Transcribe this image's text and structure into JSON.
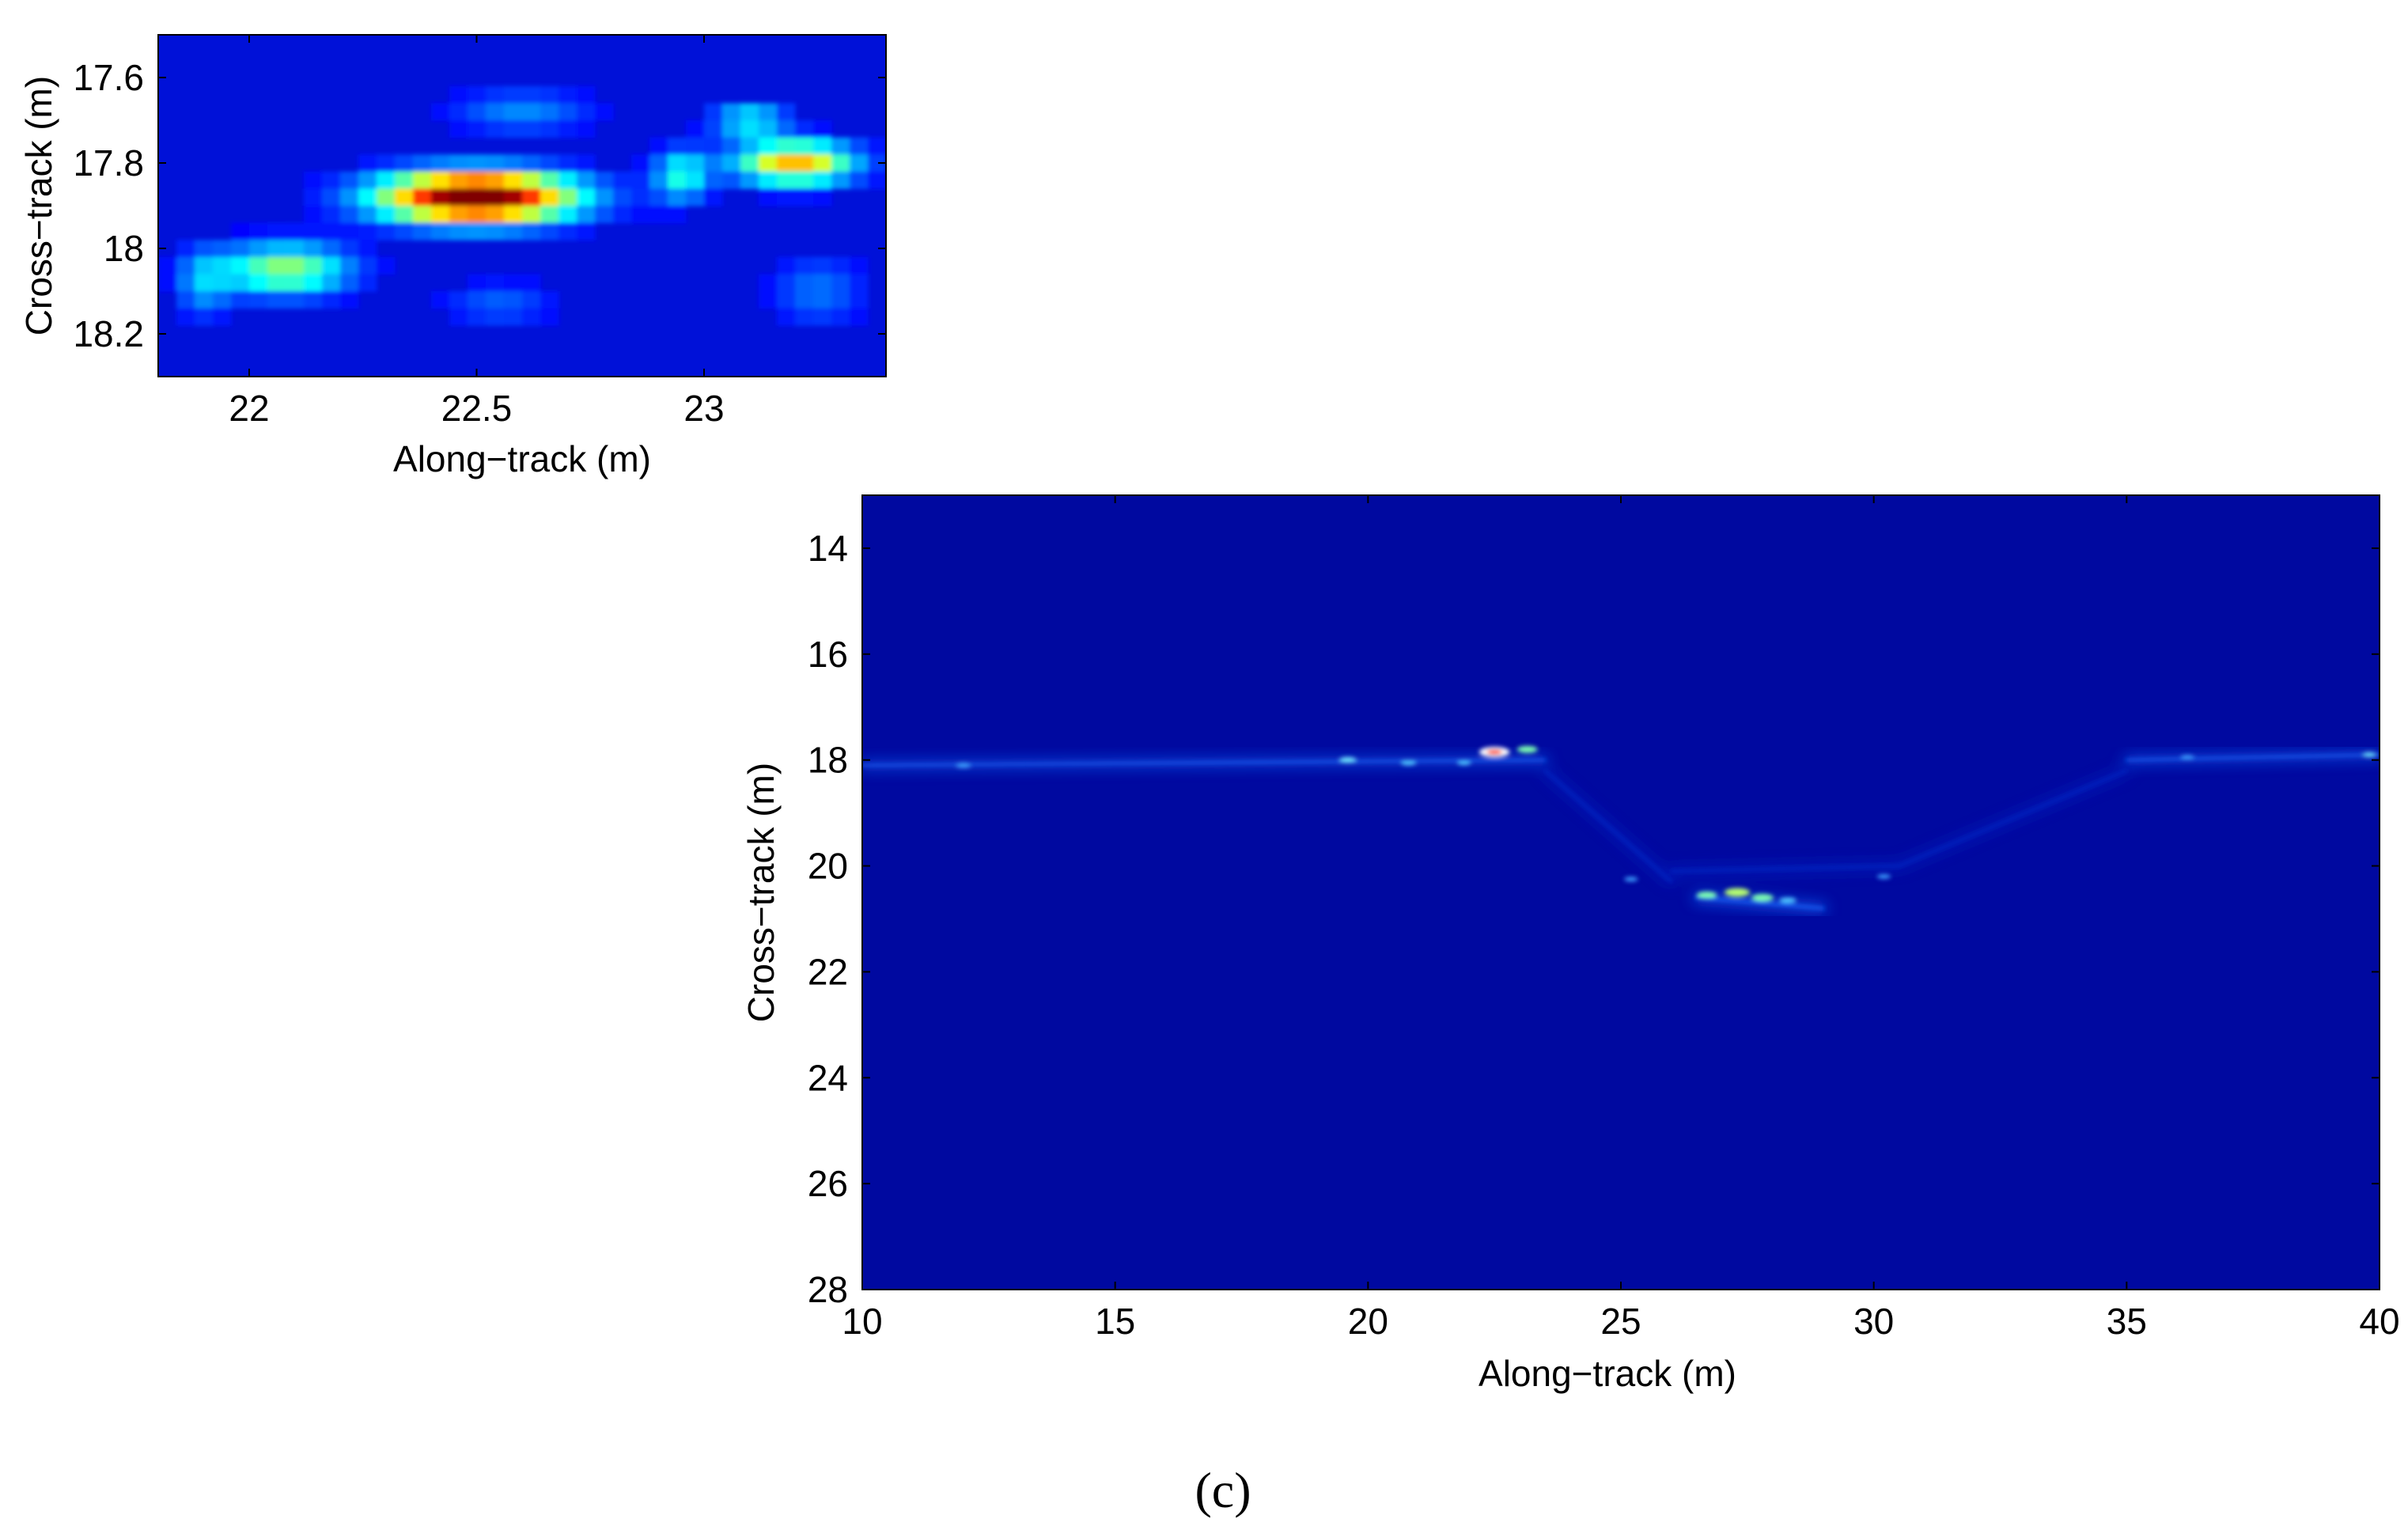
{
  "caption": "(c)",
  "chart_data": [
    {
      "type": "heatmap",
      "title": "",
      "xlabel": "Along−track (m)",
      "ylabel": "Cross−track (m)",
      "xlim": [
        21.8,
        23.4
      ],
      "ylim": [
        17.5,
        18.3
      ],
      "y_reversed": true,
      "xticks": [
        22,
        22.5,
        23
      ],
      "xtick_labels": [
        "22",
        "22.5",
        "23"
      ],
      "yticks": [
        17.6,
        17.8,
        18,
        18.2
      ],
      "ytick_labels": [
        "17.6",
        "17.8",
        "18",
        "18.2"
      ],
      "colormap": "jet",
      "background_color": "#0011d8",
      "peaks": [
        {
          "x": 22.5,
          "y": 17.88,
          "intensity": 1.0,
          "sx": 0.21,
          "sy": 0.06
        },
        {
          "x": 22.08,
          "y": 18.05,
          "intensity": 0.42,
          "sx": 0.14,
          "sy": 0.06
        },
        {
          "x": 23.2,
          "y": 17.8,
          "intensity": 0.6,
          "sx": 0.13,
          "sy": 0.05
        },
        {
          "x": 22.95,
          "y": 17.83,
          "intensity": 0.3,
          "sx": 0.06,
          "sy": 0.06
        },
        {
          "x": 23.1,
          "y": 17.7,
          "intensity": 0.28,
          "sx": 0.08,
          "sy": 0.04
        },
        {
          "x": 22.6,
          "y": 17.68,
          "intensity": 0.16,
          "sx": 0.15,
          "sy": 0.05
        },
        {
          "x": 21.9,
          "y": 18.08,
          "intensity": 0.18,
          "sx": 0.06,
          "sy": 0.08
        },
        {
          "x": 22.55,
          "y": 18.13,
          "intensity": 0.12,
          "sx": 0.12,
          "sy": 0.05
        },
        {
          "x": 23.25,
          "y": 18.1,
          "intensity": 0.14,
          "sx": 0.1,
          "sy": 0.08
        }
      ]
    },
    {
      "type": "heatmap",
      "title": "",
      "xlabel": "Along−track (m)",
      "ylabel": "Cross−track (m)",
      "xlim": [
        10,
        40
      ],
      "ylim": [
        13,
        28
      ],
      "y_reversed": true,
      "xticks": [
        10,
        15,
        20,
        25,
        30,
        35,
        40
      ],
      "xtick_labels": [
        "10",
        "15",
        "20",
        "25",
        "30",
        "35",
        "40"
      ],
      "yticks": [
        14,
        16,
        18,
        20,
        22,
        24,
        26,
        28
      ],
      "ytick_labels": [
        "14",
        "16",
        "18",
        "20",
        "22",
        "24",
        "26",
        "28"
      ],
      "colormap": "jet",
      "background_color": "#0009a0",
      "features": [
        {
          "kind": "segment",
          "x0": 10,
          "y0": 18.1,
          "x1": 23.5,
          "y1": 18.0,
          "color": "#1a6cff",
          "width": 0.12
        },
        {
          "kind": "segment",
          "x0": 35,
          "y0": 18.0,
          "x1": 40,
          "y1": 17.9,
          "color": "#1a6cff",
          "width": 0.12
        },
        {
          "kind": "segment",
          "x0": 23.5,
          "y0": 18.2,
          "x1": 26,
          "y1": 20.3,
          "color": "#0b2fd0",
          "width": 0.1
        },
        {
          "kind": "segment",
          "x0": 26,
          "y0": 20.1,
          "x1": 30.5,
          "y1": 20.0,
          "color": "#0b2fd0",
          "width": 0.1
        },
        {
          "kind": "segment",
          "x0": 30.5,
          "y0": 20.0,
          "x1": 35,
          "y1": 18.2,
          "color": "#0b2fd0",
          "width": 0.1
        },
        {
          "kind": "segment",
          "x0": 26.5,
          "y0": 20.6,
          "x1": 29,
          "y1": 20.8,
          "color": "#1a6cff",
          "width": 0.15
        },
        {
          "kind": "spot",
          "x": 22.5,
          "y": 17.85,
          "color": "#ffffff",
          "r": 0.18
        },
        {
          "kind": "spot",
          "x": 22.5,
          "y": 17.85,
          "color": "#ff3300",
          "r": 0.09
        },
        {
          "kind": "spot",
          "x": 23.15,
          "y": 17.8,
          "color": "#7dffb0",
          "r": 0.12
        },
        {
          "kind": "spot",
          "x": 19.6,
          "y": 18.0,
          "color": "#6fe8ff",
          "r": 0.1
        },
        {
          "kind": "spot",
          "x": 20.8,
          "y": 18.05,
          "color": "#50c8ff",
          "r": 0.09
        },
        {
          "kind": "spot",
          "x": 12,
          "y": 18.1,
          "color": "#3da0ff",
          "r": 0.09
        },
        {
          "kind": "spot",
          "x": 21.9,
          "y": 18.05,
          "color": "#50c8ff",
          "r": 0.08
        },
        {
          "kind": "spot",
          "x": 26.7,
          "y": 20.55,
          "color": "#7dffb0",
          "r": 0.12
        },
        {
          "kind": "spot",
          "x": 27.3,
          "y": 20.5,
          "color": "#b8ff70",
          "r": 0.15
        },
        {
          "kind": "spot",
          "x": 27.8,
          "y": 20.6,
          "color": "#7dffb0",
          "r": 0.13
        },
        {
          "kind": "spot",
          "x": 28.3,
          "y": 20.65,
          "color": "#50c8ff",
          "r": 0.1
        },
        {
          "kind": "spot",
          "x": 25.2,
          "y": 20.25,
          "color": "#3da0ff",
          "r": 0.08
        },
        {
          "kind": "spot",
          "x": 30.2,
          "y": 20.2,
          "color": "#3da0ff",
          "r": 0.08
        },
        {
          "kind": "spot",
          "x": 36.2,
          "y": 17.95,
          "color": "#3da0ff",
          "r": 0.08
        },
        {
          "kind": "spot",
          "x": 39.8,
          "y": 17.9,
          "color": "#6fe8ff",
          "r": 0.08
        }
      ]
    }
  ]
}
